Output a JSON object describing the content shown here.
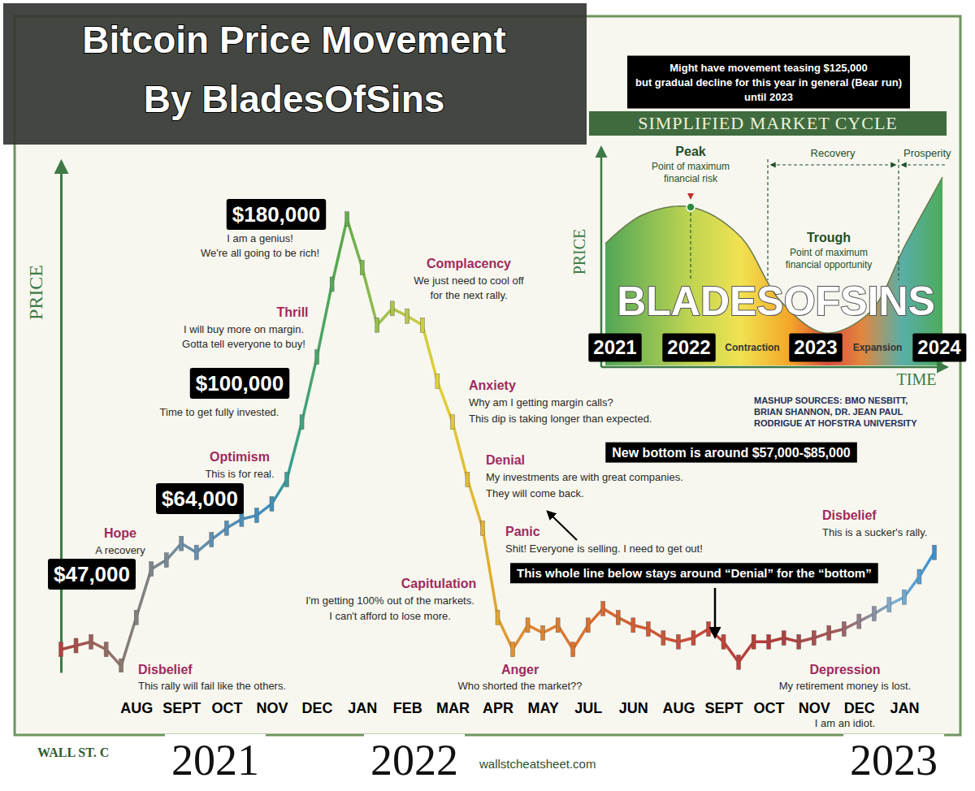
{
  "chart_data": {
    "type": "line",
    "title": "Bitcoin Price Movement",
    "subtitle": "By BladesOfSins",
    "y_label": "PRICE",
    "categories": [
      null,
      null,
      null,
      null,
      null,
      "AUG",
      null,
      null,
      "SEPT",
      null,
      null,
      "OCT",
      null,
      null,
      "NOV",
      null,
      null,
      "DEC",
      null,
      null,
      "JAN",
      null,
      null,
      "FEB",
      null,
      null,
      "MAR",
      null,
      null,
      "APR",
      null,
      null,
      "MAY",
      null,
      null,
      "JUL",
      null,
      null,
      "JUN",
      null,
      null,
      "AUG",
      null,
      null,
      "SEPT",
      null,
      null,
      "OCT",
      null,
      null,
      "NOV",
      null,
      null,
      "DEC",
      null,
      null,
      "JAN",
      null,
      null
    ],
    "values": [
      9000,
      10500,
      12000,
      9000,
      2500,
      21500,
      40500,
      44000,
      50500,
      47000,
      52000,
      56500,
      60000,
      61500,
      66000,
      75500,
      98000,
      123500,
      152000,
      177500,
      158500,
      136000,
      142500,
      139500,
      136000,
      114000,
      98000,
      75500,
      56500,
      21500,
      9000,
      18500,
      15500,
      18500,
      9000,
      18500,
      25000,
      21500,
      18500,
      17000,
      13500,
      12000,
      13500,
      17000,
      12000,
      4000,
      12000,
      12000,
      13500,
      12000,
      13500,
      15500,
      17000,
      20000,
      23000,
      26500,
      29500,
      37500,
      47000
    ],
    "ylim": [
      0,
      200000
    ],
    "yticks": [],
    "tick_labels": "x",
    "marker": "candle",
    "x_group_labels": [
      "2021",
      "2022",
      "2023"
    ],
    "price_labels": [
      "$47,000",
      "$64,000",
      "$100,000",
      "$180,000"
    ],
    "stages": [
      {
        "name": "Disbelief",
        "text": [
          "This rally will fail like the others."
        ]
      },
      {
        "name": "Hope",
        "text": [
          "A recovery"
        ]
      },
      {
        "name": "Optimism",
        "text": [
          "This is for real."
        ]
      },
      {
        "name": "Thrill",
        "text": [
          "I will buy more on margin.",
          "Gotta tell everyone to buy!"
        ]
      },
      {
        "text": [
          "I am a genius!",
          "We're all going to be rich!"
        ]
      },
      {
        "text": [
          "Time to get fully invested."
        ]
      },
      {
        "name": "Complacency",
        "text": [
          "We just need to cool off",
          "for the next rally."
        ]
      },
      {
        "name": "Anxiety",
        "text": [
          "Why am I getting margin calls?",
          "This dip is taking longer than expected."
        ]
      },
      {
        "name": "Denial",
        "text": [
          "My investments are with great companies.",
          "They will come back."
        ]
      },
      {
        "name": "Panic",
        "text": [
          "Shit! Everyone is selling. I need to get out!"
        ]
      },
      {
        "name": "Capitulation",
        "text": [
          "I'm getting 100% out of the markets.",
          "I can't afford to lose more."
        ]
      },
      {
        "name": "Anger",
        "text": [
          "Who shorted the market??"
        ]
      },
      {
        "name": "Depression",
        "text": [
          "My retirement money is lost.",
          "I am an idiot."
        ]
      },
      {
        "name": "Disbelief",
        "text": [
          "This is a sucker's rally."
        ]
      }
    ],
    "annotations": [
      [
        "Might have movement teasing $125,000",
        "but gradual decline for this year in general (Bear run)",
        "until 2023"
      ],
      [
        "New bottom is around $57,000-$85,000"
      ],
      [
        "This whole line below stays around “Denial” for the “bottom”"
      ]
    ],
    "inset": {
      "title": "SIMPLIFIED MARKET CYCLE",
      "y_label": "PRICE",
      "x_label": "TIME",
      "peak": [
        "Peak",
        "Point of maximum",
        "financial risk"
      ],
      "trough": [
        "Trough",
        "Point of maximum",
        "financial opportunity"
      ],
      "phases_top": [
        "Recovery",
        "Prosperity"
      ],
      "phases_bottom": [
        "Contraction",
        "Expansion"
      ],
      "years": [
        "2021",
        "2022",
        "2023",
        "2024"
      ],
      "watermark": "BLADESOFSINS",
      "sources": [
        "MASHUP SOURCES: BMO NESBITT,",
        "BRIAN SHANNON, DR. JEAN PAUL",
        "RODRIGUE AT HOFSTRA UNIVERSITY"
      ]
    },
    "footer": {
      "logo": "WALL ST. C",
      "url": "wallstcheatsheet.com"
    }
  }
}
